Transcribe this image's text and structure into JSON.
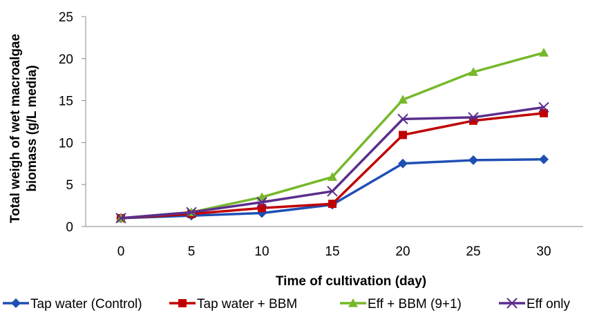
{
  "chart_data": {
    "type": "line",
    "title": "",
    "xlabel": "Time of cultivation (day)",
    "ylabel": "Total weigh of wet macroalgae biomass (g/L media)",
    "ylabel_lines": [
      "Total weigh of wet macroalgae",
      "biomass (g/L media)"
    ],
    "x": [
      0,
      5,
      10,
      15,
      20,
      25,
      30
    ],
    "x_tick_labels": [
      "0",
      "5",
      "10",
      "15",
      "20",
      "25",
      "30"
    ],
    "ylim": [
      0,
      25
    ],
    "y_ticks": [
      0,
      5,
      10,
      15,
      20,
      25
    ],
    "y_tick_labels": [
      "0",
      "5",
      "10",
      "15",
      "20",
      "25"
    ],
    "grid": false,
    "legend_position": "bottom",
    "series": [
      {
        "name": "Tap water (Control)",
        "color": "#1f4fb4",
        "marker": "diamond",
        "values": [
          1.0,
          1.3,
          1.6,
          2.6,
          7.5,
          7.9,
          8.0
        ]
      },
      {
        "name": "Tap water + BBM",
        "color": "#c00000",
        "marker": "square",
        "values": [
          1.0,
          1.5,
          2.2,
          2.7,
          10.9,
          12.6,
          13.5
        ]
      },
      {
        "name": "Eff + BBM (9+1)",
        "color": "#76b82a",
        "marker": "triangle",
        "values": [
          1.0,
          1.7,
          3.5,
          5.9,
          15.1,
          18.4,
          20.7
        ]
      },
      {
        "name": "Eff only",
        "color": "#5b2d8e",
        "marker": "x",
        "values": [
          1.0,
          1.7,
          2.9,
          4.2,
          12.8,
          13.0,
          14.2
        ]
      }
    ]
  }
}
